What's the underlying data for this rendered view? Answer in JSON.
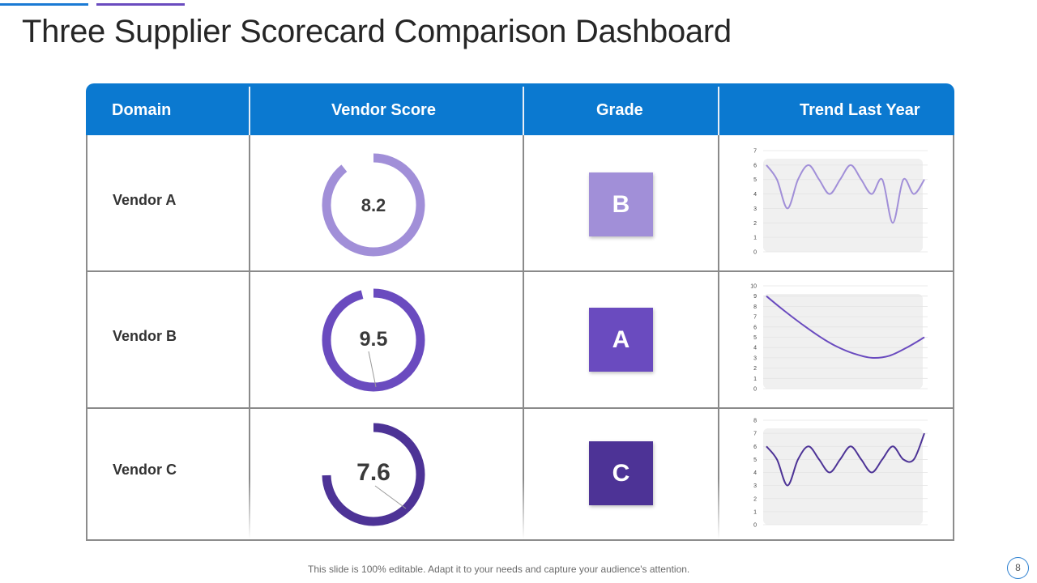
{
  "title": "Three Supplier Scorecard Comparison Dashboard",
  "columns": {
    "domain": "Domain",
    "score": "Vendor Score",
    "grade": "Grade",
    "trend": "Trend Last Year"
  },
  "vendors": [
    {
      "name": "Vendor A",
      "score": "8.2",
      "score_value": 8.2,
      "grade": "B",
      "color": "#a18fd8"
    },
    {
      "name": "Vendor B",
      "score": "9.5",
      "score_value": 9.5,
      "grade": "A",
      "color": "#6a4bbf"
    },
    {
      "name": "Vendor C",
      "score": "7.6",
      "score_value": 7.6,
      "grade": "C",
      "color": "#4d3396"
    }
  ],
  "chart_data": [
    {
      "type": "line",
      "series_of": "Vendor A",
      "ylim": [
        0,
        7
      ],
      "yticks": [
        0,
        1,
        2,
        3,
        4,
        5,
        6,
        7
      ],
      "values": [
        6,
        5,
        3,
        5,
        6,
        5,
        4,
        5,
        6,
        5,
        4,
        5,
        2,
        5,
        4,
        5
      ],
      "grid": true
    },
    {
      "type": "line",
      "series_of": "Vendor B",
      "ylim": [
        0,
        10
      ],
      "yticks": [
        0,
        1,
        2,
        3,
        4,
        5,
        6,
        7,
        8,
        9,
        10
      ],
      "values": [
        9,
        7.6,
        6.3,
        5.1,
        4.1,
        3.4,
        3.0,
        3.2,
        4.0,
        5.0
      ],
      "grid": true
    },
    {
      "type": "line",
      "series_of": "Vendor C",
      "ylim": [
        0,
        8
      ],
      "yticks": [
        0,
        1,
        2,
        3,
        4,
        5,
        6,
        7,
        8
      ],
      "values": [
        6,
        5,
        3,
        5,
        6,
        5,
        4,
        5,
        6,
        5,
        4,
        5,
        6,
        5,
        5,
        7
      ],
      "grid": true
    }
  ],
  "footer": "This slide is 100% editable. Adapt it to your needs and capture your audience's attention.",
  "page_number": "8"
}
